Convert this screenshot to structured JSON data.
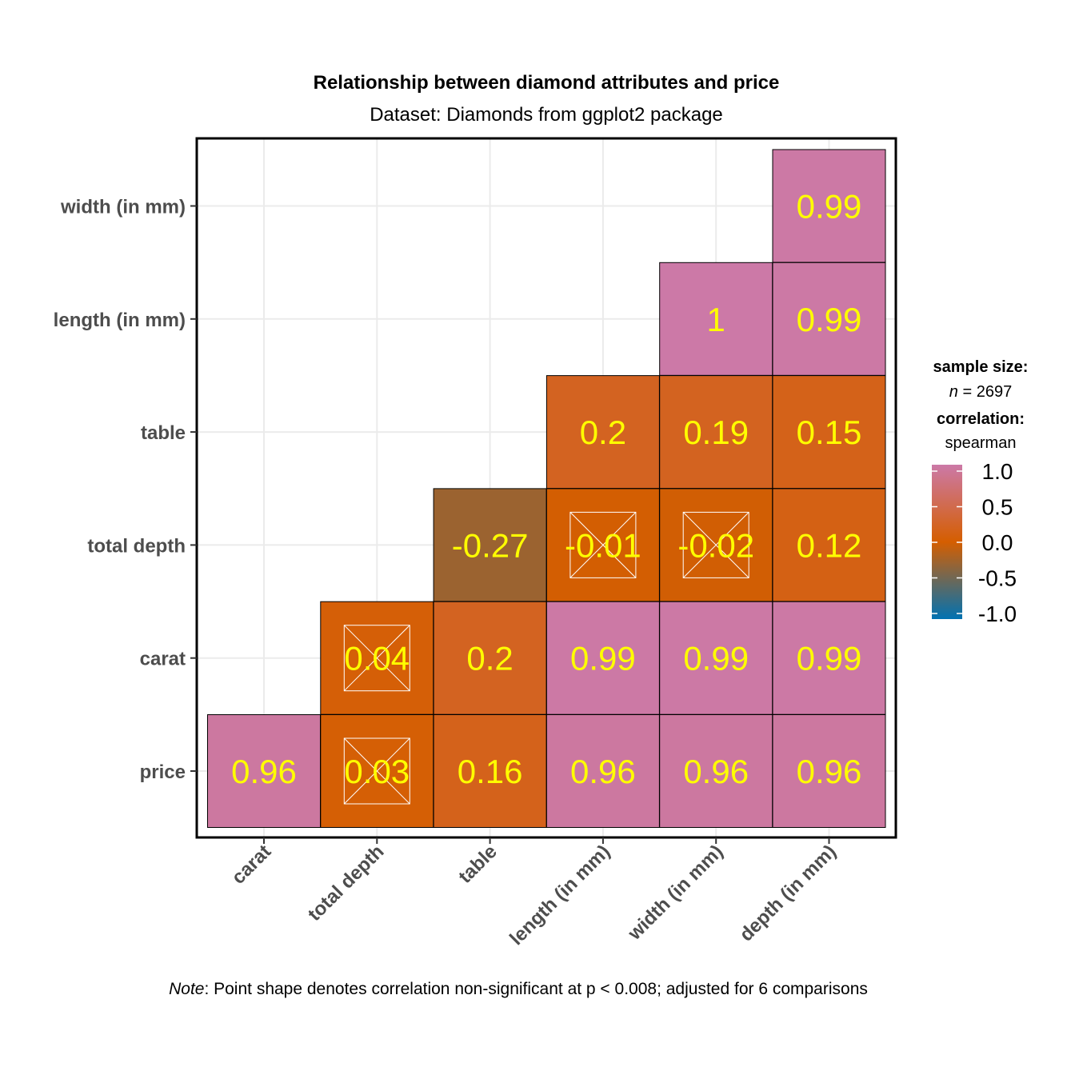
{
  "chart_data": {
    "type": "heatmap",
    "title": "Relationship between diamond attributes and price",
    "subtitle": "Dataset: Diamonds from ggplot2 package",
    "x_categories": [
      "carat",
      "total depth",
      "table",
      "length (in mm)",
      "width (in mm)",
      "depth (in mm)"
    ],
    "y_categories": [
      "price",
      "carat",
      "total depth",
      "table",
      "length (in mm)",
      "width (in mm)"
    ],
    "cells": [
      {
        "x": "carat",
        "y": "price",
        "value": 0.96,
        "label": "0.96",
        "nonsignificant": false
      },
      {
        "x": "total depth",
        "y": "price",
        "value": 0.03,
        "label": "0.03",
        "nonsignificant": true
      },
      {
        "x": "table",
        "y": "price",
        "value": 0.16,
        "label": "0.16",
        "nonsignificant": false
      },
      {
        "x": "length (in mm)",
        "y": "price",
        "value": 0.96,
        "label": "0.96",
        "nonsignificant": false
      },
      {
        "x": "width (in mm)",
        "y": "price",
        "value": 0.96,
        "label": "0.96",
        "nonsignificant": false
      },
      {
        "x": "depth (in mm)",
        "y": "price",
        "value": 0.96,
        "label": "0.96",
        "nonsignificant": false
      },
      {
        "x": "total depth",
        "y": "carat",
        "value": 0.04,
        "label": "0.04",
        "nonsignificant": true
      },
      {
        "x": "table",
        "y": "carat",
        "value": 0.2,
        "label": "0.2",
        "nonsignificant": false
      },
      {
        "x": "length (in mm)",
        "y": "carat",
        "value": 0.99,
        "label": "0.99",
        "nonsignificant": false
      },
      {
        "x": "width (in mm)",
        "y": "carat",
        "value": 0.99,
        "label": "0.99",
        "nonsignificant": false
      },
      {
        "x": "depth (in mm)",
        "y": "carat",
        "value": 0.99,
        "label": "0.99",
        "nonsignificant": false
      },
      {
        "x": "table",
        "y": "total depth",
        "value": -0.27,
        "label": "-0.27",
        "nonsignificant": false
      },
      {
        "x": "length (in mm)",
        "y": "total depth",
        "value": -0.01,
        "label": "-0.01",
        "nonsignificant": true
      },
      {
        "x": "width (in mm)",
        "y": "total depth",
        "value": -0.02,
        "label": "-0.02",
        "nonsignificant": true
      },
      {
        "x": "depth (in mm)",
        "y": "total depth",
        "value": 0.12,
        "label": "0.12",
        "nonsignificant": false
      },
      {
        "x": "length (in mm)",
        "y": "table",
        "value": 0.2,
        "label": "0.2",
        "nonsignificant": false
      },
      {
        "x": "width (in mm)",
        "y": "table",
        "value": 0.19,
        "label": "0.19",
        "nonsignificant": false
      },
      {
        "x": "depth (in mm)",
        "y": "table",
        "value": 0.15,
        "label": "0.15",
        "nonsignificant": false
      },
      {
        "x": "width (in mm)",
        "y": "length (in mm)",
        "value": 1,
        "label": "1",
        "nonsignificant": false
      },
      {
        "x": "depth (in mm)",
        "y": "length (in mm)",
        "value": 0.99,
        "label": "0.99",
        "nonsignificant": false
      },
      {
        "x": "depth (in mm)",
        "y": "width (in mm)",
        "value": 0.99,
        "label": "0.99",
        "nonsignificant": false
      }
    ],
    "legend": {
      "sample_size_title": "sample size:",
      "n_label": "n",
      "n_value": " = 2697",
      "correlation_title": "correlation:",
      "method": "spearman",
      "ticks": [
        "1.0",
        "0.5",
        "0.0",
        "-0.5",
        "-1.0"
      ],
      "tick_values": [
        1.0,
        0.5,
        0.0,
        -0.5,
        -1.0
      ],
      "range": [
        -1,
        1
      ],
      "colors": {
        "low": "#0072B2",
        "mid": "#D55E00",
        "high": "#CC79A7"
      },
      "placement": "right"
    },
    "caption": {
      "italic": "Note",
      "text": ": Point shape denotes correlation non-significant at p < 0.008; adjusted for 6 comparisons"
    },
    "grid": true,
    "label_color": "#FFFF00"
  }
}
